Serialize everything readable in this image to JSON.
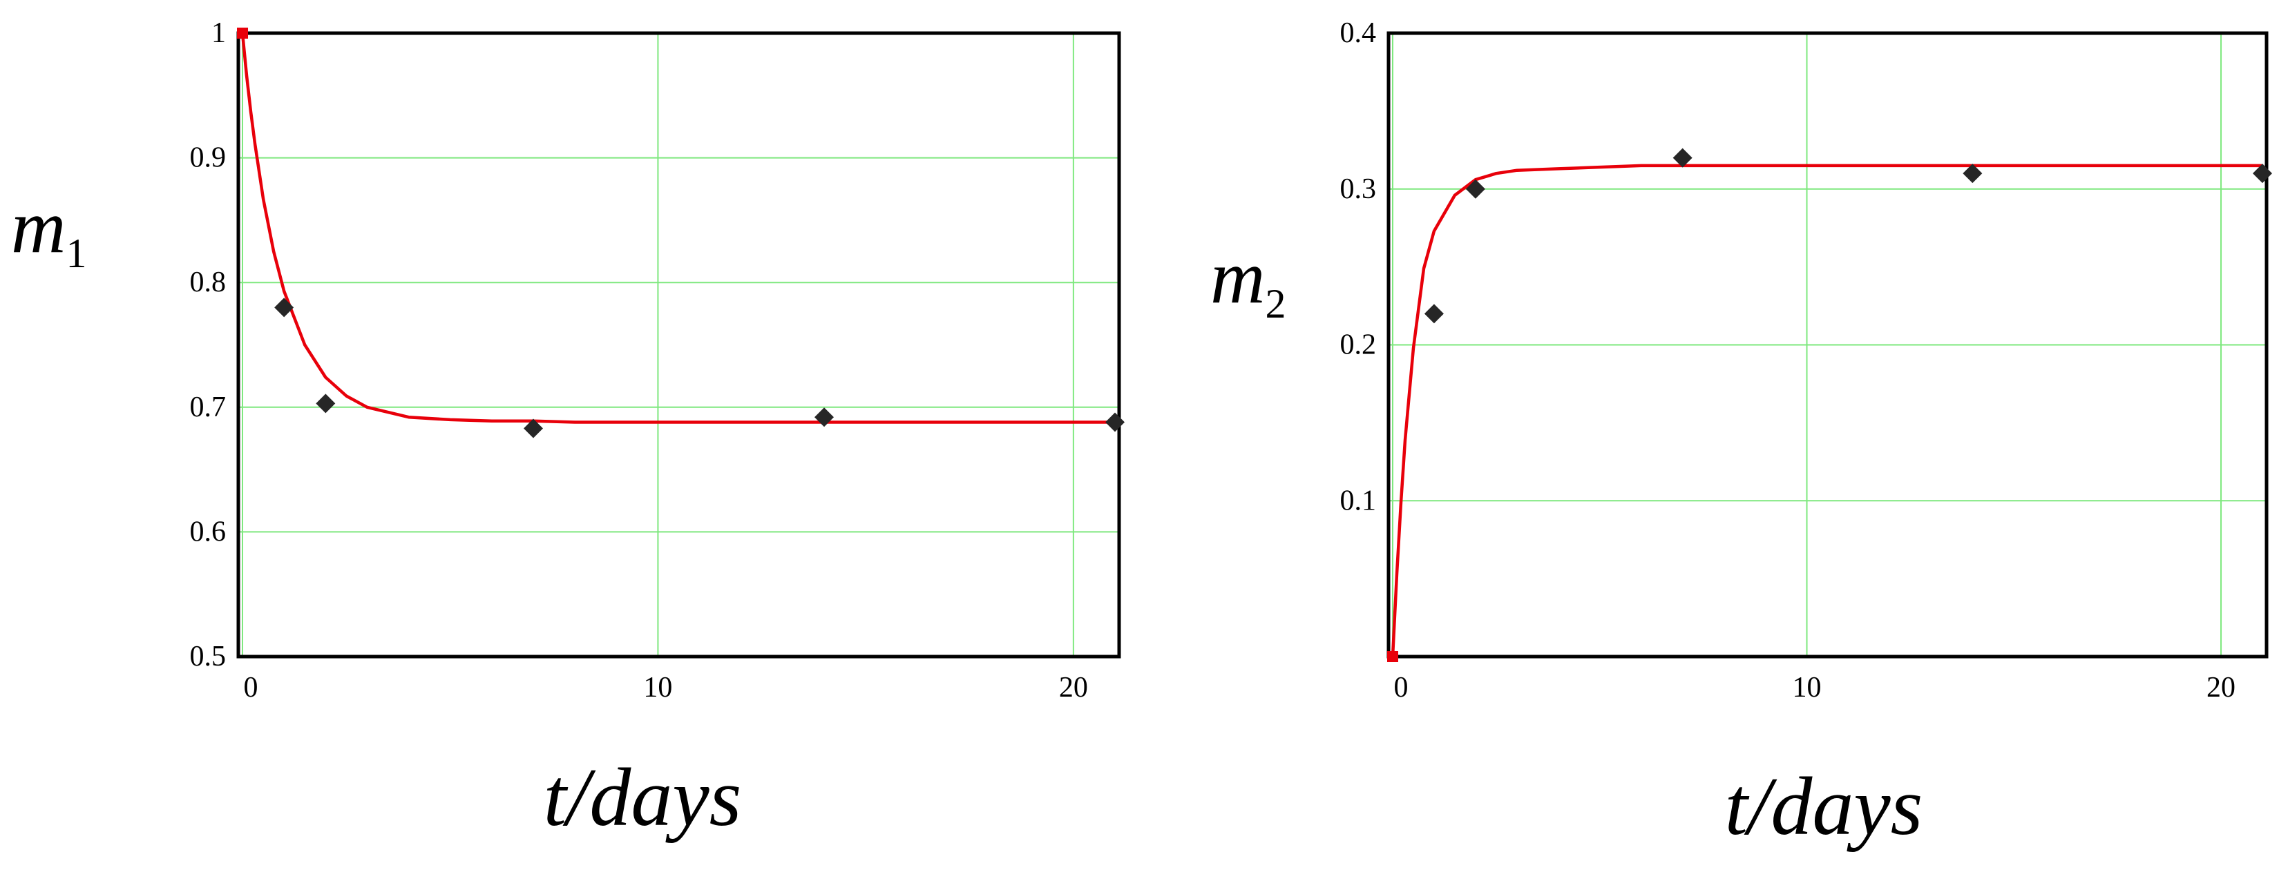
{
  "chart_data": [
    {
      "type": "scatter",
      "title": "",
      "xlabel": "t/days",
      "ylabel": "m",
      "ylabel_subscript": "1",
      "xlim": [
        -0.1,
        21.1
      ],
      "ylim": [
        0.5,
        1.0
      ],
      "x_ticks": [
        0,
        10,
        20
      ],
      "x_tick_labels": [
        "0",
        "10",
        "20"
      ],
      "y_ticks": [
        0.5,
        0.6,
        0.7,
        0.8,
        0.9,
        1.0
      ],
      "y_tick_labels": [
        "0.5",
        "0.6",
        "0.7",
        "0.8",
        "0.9",
        "1"
      ],
      "grid": true,
      "curve": {
        "color": "#e8000a",
        "x": [
          0,
          0.1,
          0.2,
          0.3,
          0.5,
          0.75,
          1,
          1.5,
          2,
          2.5,
          3,
          4,
          5,
          6,
          7,
          8,
          10,
          12,
          14,
          17,
          21
        ],
        "y": [
          1.0,
          0.966,
          0.937,
          0.911,
          0.867,
          0.825,
          0.793,
          0.75,
          0.724,
          0.709,
          0.7,
          0.692,
          0.69,
          0.689,
          0.689,
          0.688,
          0.688,
          0.688,
          0.688,
          0.688,
          0.688
        ]
      },
      "points": {
        "color": "#262626",
        "x": [
          1,
          2,
          7,
          14,
          21
        ],
        "y": [
          0.78,
          0.703,
          0.683,
          0.692,
          0.688
        ]
      }
    },
    {
      "type": "scatter",
      "title": "",
      "xlabel": "t/days",
      "ylabel": "m",
      "ylabel_subscript": "2",
      "xlim": [
        -0.1,
        21.1
      ],
      "ylim": [
        0.0,
        0.4
      ],
      "x_ticks": [
        0,
        10,
        20
      ],
      "x_tick_labels": [
        "0",
        "10",
        "20"
      ],
      "y_ticks": [
        0.1,
        0.2,
        0.3,
        0.4
      ],
      "y_tick_labels": [
        "0.1",
        "0.2",
        "0.3",
        "0.4"
      ],
      "grid": true,
      "curve": {
        "color": "#e8000a",
        "x": [
          0,
          0.1,
          0.2,
          0.3,
          0.5,
          0.75,
          1,
          1.5,
          2,
          2.5,
          3,
          4,
          5,
          6,
          7,
          8,
          10,
          12,
          14,
          17,
          21
        ],
        "y": [
          0.0,
          0.053,
          0.099,
          0.139,
          0.198,
          0.249,
          0.273,
          0.296,
          0.306,
          0.31,
          0.312,
          0.313,
          0.314,
          0.315,
          0.315,
          0.315,
          0.315,
          0.315,
          0.315,
          0.315,
          0.315
        ]
      },
      "points": {
        "color": "#262626",
        "x": [
          1,
          2,
          7,
          14,
          21
        ],
        "y": [
          0.22,
          0.3,
          0.32,
          0.31,
          0.31
        ]
      }
    }
  ]
}
